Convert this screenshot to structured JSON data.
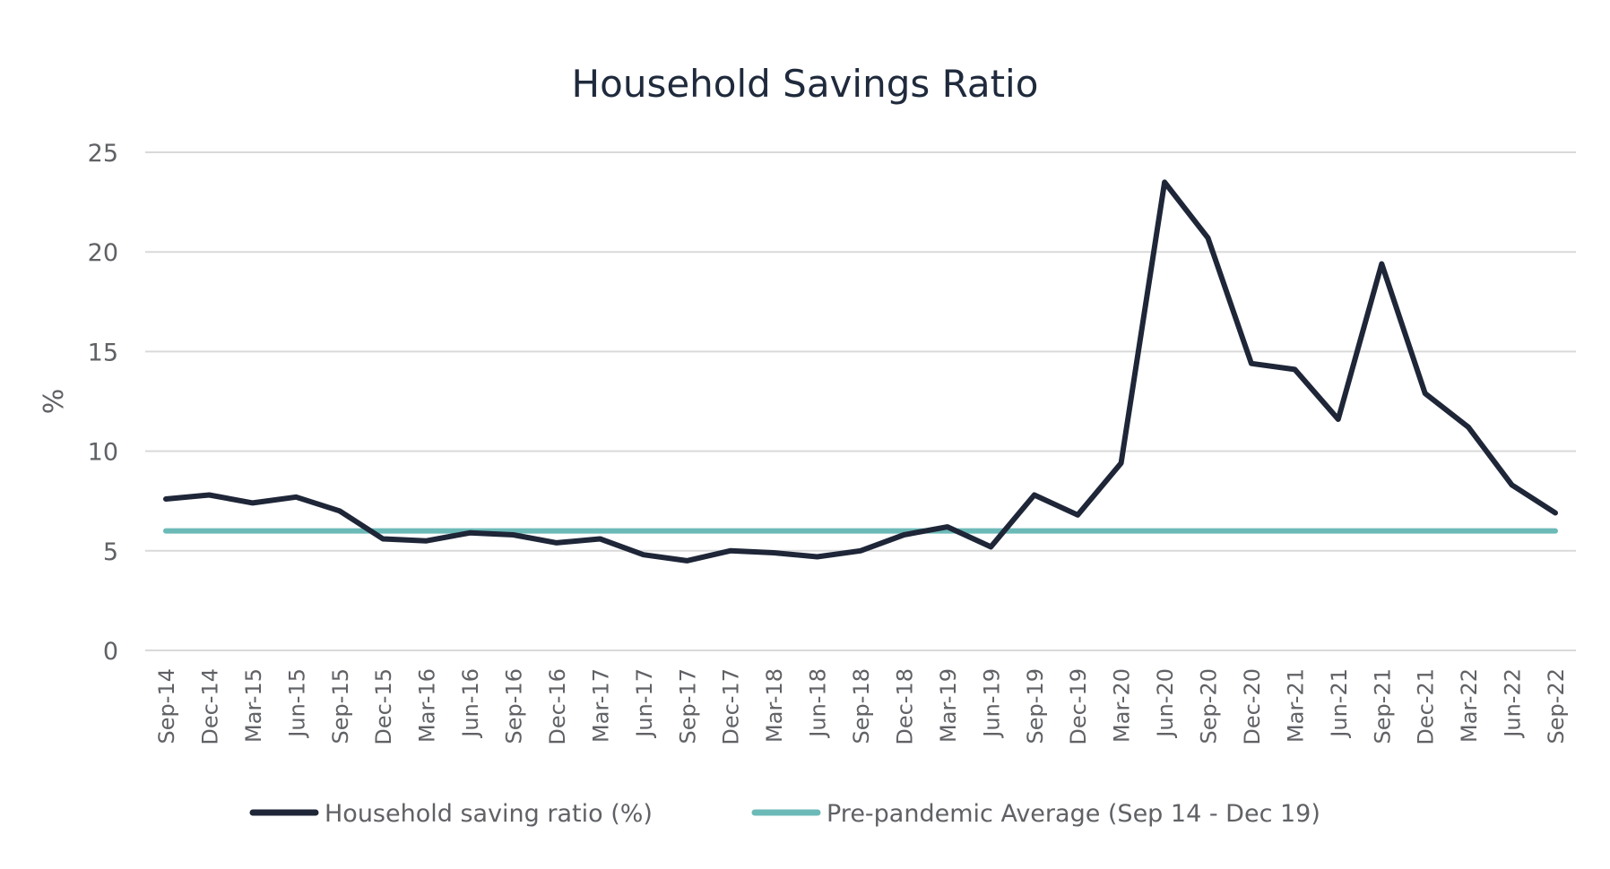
{
  "chart_data": {
    "type": "line",
    "title": "Household Savings Ratio",
    "xlabel": "",
    "ylabel": "%",
    "ylim": [
      0,
      25
    ],
    "yticks": [
      "0",
      "5",
      "10",
      "15",
      "20",
      "25"
    ],
    "grid": true,
    "legend_position": "bottom",
    "categories": [
      "Sep-14",
      "Dec-14",
      "Mar-15",
      "Jun-15",
      "Sep-15",
      "Dec-15",
      "Mar-16",
      "Jun-16",
      "Sep-16",
      "Dec-16",
      "Mar-17",
      "Jun-17",
      "Sep-17",
      "Dec-17",
      "Mar-18",
      "Jun-18",
      "Sep-18",
      "Dec-18",
      "Mar-19",
      "Jun-19",
      "Sep-19",
      "Dec-19",
      "Mar-20",
      "Jun-20",
      "Sep-20",
      "Dec-20",
      "Mar-21",
      "Jun-21",
      "Sep-21",
      "Dec-21",
      "Mar-22",
      "Jun-22",
      "Sep-22"
    ],
    "series": [
      {
        "name": "Household saving ratio (%)",
        "color": "#1e2638",
        "values": [
          7.6,
          7.8,
          7.4,
          7.7,
          7.0,
          5.6,
          5.5,
          5.9,
          5.8,
          5.4,
          5.6,
          4.8,
          4.5,
          5.0,
          4.9,
          4.7,
          5.0,
          5.8,
          6.2,
          5.2,
          7.8,
          6.8,
          9.4,
          23.5,
          20.7,
          14.4,
          14.1,
          11.6,
          19.4,
          12.9,
          11.2,
          8.3,
          6.9
        ]
      },
      {
        "name": "Pre-pandemic Average (Sep 14 - Dec 19)",
        "color": "#6cbab8",
        "values": [
          6.0,
          6.0,
          6.0,
          6.0,
          6.0,
          6.0,
          6.0,
          6.0,
          6.0,
          6.0,
          6.0,
          6.0,
          6.0,
          6.0,
          6.0,
          6.0,
          6.0,
          6.0,
          6.0,
          6.0,
          6.0,
          6.0,
          6.0,
          6.0,
          6.0,
          6.0,
          6.0,
          6.0,
          6.0,
          6.0,
          6.0,
          6.0,
          6.0
        ]
      }
    ]
  }
}
